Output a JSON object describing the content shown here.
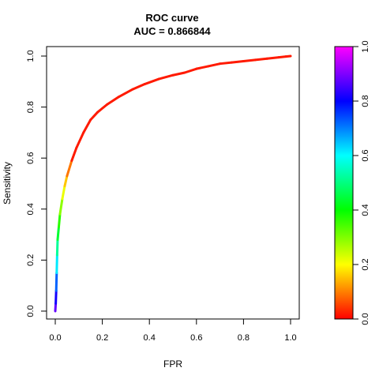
{
  "chart_data": {
    "type": "line",
    "title": "ROC curve",
    "subtitle": "AUC = 0.866844",
    "xlabel": "FPR",
    "ylabel": "Sensitivity",
    "xlim": [
      0,
      1
    ],
    "ylim": [
      0,
      1
    ],
    "x_ticks": [
      "0.0",
      "0.2",
      "0.4",
      "0.6",
      "0.8",
      "1.0"
    ],
    "y_ticks": [
      "0.0",
      "0.2",
      "0.4",
      "0.6",
      "0.8",
      "1.0"
    ],
    "grid": false,
    "legend": "none",
    "series": [
      {
        "x": [
          0.0,
          0.002,
          0.004,
          0.006,
          0.008,
          0.01,
          0.015,
          0.02,
          0.03,
          0.04,
          0.05,
          0.07,
          0.09,
          0.12,
          0.15,
          0.18,
          0.22,
          0.27,
          0.33,
          0.38,
          0.44,
          0.5,
          0.55,
          0.6,
          0.65,
          0.7,
          0.75,
          0.8,
          0.85,
          0.9,
          0.95,
          0.98,
          1.0
        ],
        "y": [
          0.0,
          0.03,
          0.08,
          0.15,
          0.22,
          0.28,
          0.33,
          0.38,
          0.44,
          0.49,
          0.53,
          0.59,
          0.64,
          0.7,
          0.75,
          0.78,
          0.81,
          0.84,
          0.87,
          0.89,
          0.91,
          0.925,
          0.935,
          0.95,
          0.96,
          0.97,
          0.975,
          0.98,
          0.985,
          0.99,
          0.995,
          0.998,
          1.0
        ],
        "colored_by": "threshold"
      }
    ],
    "colorbar": {
      "range": [
        0,
        1
      ],
      "ticks": [
        "0.0",
        "0.2",
        "0.4",
        "0.6",
        "0.8",
        "1.0"
      ],
      "stops": [
        "#ff0000",
        "#ffff00",
        "#00ff00",
        "#00ffff",
        "#0000ff",
        "#ff00ff"
      ]
    }
  }
}
